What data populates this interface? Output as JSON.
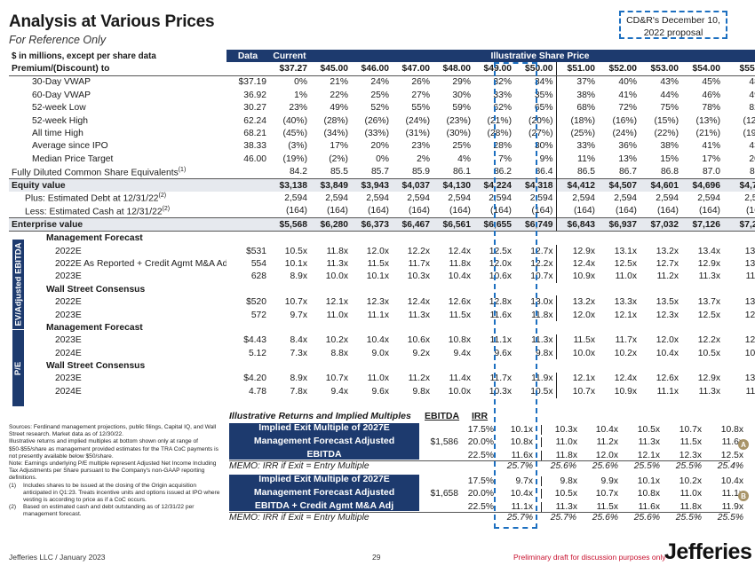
{
  "header": {
    "title": "Analysis at Various Prices",
    "subtitle": "For Reference Only",
    "proposal_line1": "CD&R's December 10,",
    "proposal_line2": "2022 proposal"
  },
  "table": {
    "units_label": "$ in millions, except per share data",
    "col_data": "Data",
    "col_current": "Current",
    "col_illustrative": "Illustrative Share Price",
    "premium_label": "Premium/(Discount) to",
    "prices": [
      "$37.27",
      "$45.00",
      "$46.00",
      "$47.00",
      "$48.00",
      "$49.00",
      "$50.00",
      "$51.00",
      "$52.00",
      "$53.00",
      "$54.00",
      "$55.00"
    ],
    "premium_rows": [
      {
        "label": "30-Day VWAP",
        "data": "$37.19",
        "vals": [
          "0%",
          "21%",
          "24%",
          "26%",
          "29%",
          "32%",
          "34%",
          "37%",
          "40%",
          "43%",
          "45%",
          "48%"
        ]
      },
      {
        "label": "60-Day VWAP",
        "data": "36.92",
        "vals": [
          "1%",
          "22%",
          "25%",
          "27%",
          "30%",
          "33%",
          "35%",
          "38%",
          "41%",
          "44%",
          "46%",
          "49%"
        ]
      },
      {
        "label": "52-week Low",
        "data": "30.27",
        "vals": [
          "23%",
          "49%",
          "52%",
          "55%",
          "59%",
          "62%",
          "65%",
          "68%",
          "72%",
          "75%",
          "78%",
          "82%"
        ]
      },
      {
        "label": "52-week High",
        "data": "62.24",
        "vals": [
          "(40%)",
          "(28%)",
          "(26%)",
          "(24%)",
          "(23%)",
          "(21%)",
          "(20%)",
          "(18%)",
          "(16%)",
          "(15%)",
          "(13%)",
          "(12%)"
        ]
      },
      {
        "label": "All time High",
        "data": "68.21",
        "vals": [
          "(45%)",
          "(34%)",
          "(33%)",
          "(31%)",
          "(30%)",
          "(28%)",
          "(27%)",
          "(25%)",
          "(24%)",
          "(22%)",
          "(21%)",
          "(19%)"
        ]
      },
      {
        "label": "Average since IPO",
        "data": "38.33",
        "vals": [
          "(3%)",
          "17%",
          "20%",
          "23%",
          "25%",
          "28%",
          "30%",
          "33%",
          "36%",
          "38%",
          "41%",
          "43%"
        ]
      },
      {
        "label": "Median Price Target",
        "data": "46.00",
        "vals": [
          "(19%)",
          "(2%)",
          "0%",
          "2%",
          "4%",
          "7%",
          "9%",
          "11%",
          "13%",
          "15%",
          "17%",
          "20%"
        ]
      }
    ],
    "fdso": {
      "label": "Fully Diluted Common Share Equivalents",
      "sup": "(1)",
      "vals": [
        "84.2",
        "85.5",
        "85.7",
        "85.9",
        "86.1",
        "86.2",
        "86.4",
        "86.5",
        "86.7",
        "86.8",
        "87.0",
        "87.1"
      ]
    },
    "equity": {
      "label": "Equity value",
      "vals": [
        "$3,138",
        "$3,849",
        "$3,943",
        "$4,037",
        "$4,130",
        "$4,224",
        "$4,318",
        "$4,412",
        "$4,507",
        "$4,601",
        "$4,696",
        "$4,791"
      ]
    },
    "debt": {
      "label": "Plus: Estimated Debt at 12/31/22",
      "sup": "(2)",
      "vals": [
        "2,594",
        "2,594",
        "2,594",
        "2,594",
        "2,594",
        "2,594",
        "2,594",
        "2,594",
        "2,594",
        "2,594",
        "2,594",
        "2,594"
      ]
    },
    "cash": {
      "label": "Less: Estimated Cash at 12/31/22",
      "sup": "(2)",
      "vals": [
        "(164)",
        "(164)",
        "(164)",
        "(164)",
        "(164)",
        "(164)",
        "(164)",
        "(164)",
        "(164)",
        "(164)",
        "(164)",
        "(164)"
      ]
    },
    "ev": {
      "label": "Enterprise value",
      "vals": [
        "$5,568",
        "$6,280",
        "$6,373",
        "$6,467",
        "$6,561",
        "$6,655",
        "$6,749",
        "$6,843",
        "$6,937",
        "$7,032",
        "$7,126",
        "$7,221"
      ]
    },
    "ev_ebitda_tag": "EV/Adjusted EBITDA",
    "ev_ebitda": [
      {
        "label": "Management Forecast",
        "group": true
      },
      {
        "label": "2022E",
        "data": "$531",
        "vals": [
          "10.5x",
          "11.8x",
          "12.0x",
          "12.2x",
          "12.4x",
          "12.5x",
          "12.7x",
          "12.9x",
          "13.1x",
          "13.2x",
          "13.4x",
          "13.6x"
        ],
        "badge": "A"
      },
      {
        "label": "2022E As Reported + Credit Agmt M&A Adj",
        "data": "554",
        "vals": [
          "10.1x",
          "11.3x",
          "11.5x",
          "11.7x",
          "11.8x",
          "12.0x",
          "12.2x",
          "12.4x",
          "12.5x",
          "12.7x",
          "12.9x",
          "13.0x"
        ],
        "badge": "B"
      },
      {
        "label": "2023E",
        "data": "628",
        "vals": [
          "8.9x",
          "10.0x",
          "10.1x",
          "10.3x",
          "10.4x",
          "10.6x",
          "10.7x",
          "10.9x",
          "11.0x",
          "11.2x",
          "11.3x",
          "11.5x"
        ]
      },
      {
        "label": "Wall Street Consensus",
        "group": true
      },
      {
        "label": "2022E",
        "data": "$520",
        "vals": [
          "10.7x",
          "12.1x",
          "12.3x",
          "12.4x",
          "12.6x",
          "12.8x",
          "13.0x",
          "13.2x",
          "13.3x",
          "13.5x",
          "13.7x",
          "13.9x"
        ]
      },
      {
        "label": "2023E",
        "data": "572",
        "vals": [
          "9.7x",
          "11.0x",
          "11.1x",
          "11.3x",
          "11.5x",
          "11.6x",
          "11.8x",
          "12.0x",
          "12.1x",
          "12.3x",
          "12.5x",
          "12.6x"
        ]
      }
    ],
    "pe_tag": "P/E",
    "pe": [
      {
        "label": "Management Forecast",
        "group": true
      },
      {
        "label": "2023E",
        "data": "$4.43",
        "vals": [
          "8.4x",
          "10.2x",
          "10.4x",
          "10.6x",
          "10.8x",
          "11.1x",
          "11.3x",
          "11.5x",
          "11.7x",
          "12.0x",
          "12.2x",
          "12.4x"
        ]
      },
      {
        "label": "2024E",
        "data": "5.12",
        "vals": [
          "7.3x",
          "8.8x",
          "9.0x",
          "9.2x",
          "9.4x",
          "9.6x",
          "9.8x",
          "10.0x",
          "10.2x",
          "10.4x",
          "10.5x",
          "10.7x"
        ]
      },
      {
        "label": "Wall Street Consensus",
        "group": true
      },
      {
        "label": "2023E",
        "data": "$4.20",
        "vals": [
          "8.9x",
          "10.7x",
          "11.0x",
          "11.2x",
          "11.4x",
          "11.7x",
          "11.9x",
          "12.1x",
          "12.4x",
          "12.6x",
          "12.9x",
          "13.1x"
        ]
      },
      {
        "label": "2024E",
        "data": "4.78",
        "vals": [
          "7.8x",
          "9.4x",
          "9.6x",
          "9.8x",
          "10.0x",
          "10.3x",
          "10.5x",
          "10.7x",
          "10.9x",
          "11.1x",
          "11.3x",
          "11.5x"
        ]
      }
    ]
  },
  "returns": {
    "heading": "Illustrative Returns and Implied Multiples",
    "ebitda_head": "EBITDA",
    "irr_head": "IRR",
    "block1": {
      "label": "Implied Exit Multiple of 2027E Management Forecast Adjusted EBITDA",
      "ebitda": "$1,586",
      "rows": [
        {
          "irr": "17.5%",
          "vals": [
            "10.1x",
            "10.3x",
            "10.4x",
            "10.5x",
            "10.7x",
            "10.8x"
          ]
        },
        {
          "irr": "20.0%",
          "vals": [
            "10.8x",
            "11.0x",
            "11.2x",
            "11.3x",
            "11.5x",
            "11.6x"
          ]
        },
        {
          "irr": "22.5%",
          "vals": [
            "11.6x",
            "11.8x",
            "12.0x",
            "12.1x",
            "12.3x",
            "12.5x"
          ]
        }
      ],
      "memo": "MEMO: IRR if Exit = Entry Multiple",
      "memo_vals": [
        "25.7%",
        "25.6%",
        "25.6%",
        "25.5%",
        "25.5%",
        "25.4%"
      ],
      "badge": "A"
    },
    "block2": {
      "label": "Implied Exit Multiple of 2027E Management Forecast Adjusted EBITDA + Credit Agmt M&A Adj",
      "ebitda": "$1,658",
      "rows": [
        {
          "irr": "17.5%",
          "vals": [
            "9.7x",
            "9.8x",
            "9.9x",
            "10.1x",
            "10.2x",
            "10.4x"
          ]
        },
        {
          "irr": "20.0%",
          "vals": [
            "10.4x",
            "10.5x",
            "10.7x",
            "10.8x",
            "11.0x",
            "11.1x"
          ]
        },
        {
          "irr": "22.5%",
          "vals": [
            "11.1x",
            "11.3x",
            "11.5x",
            "11.6x",
            "11.8x",
            "11.9x"
          ]
        }
      ],
      "memo": "MEMO: IRR if Exit = Entry Multiple",
      "memo_vals": [
        "25.7%",
        "25.7%",
        "25.6%",
        "25.6%",
        "25.5%",
        "25.5%"
      ],
      "badge": "B"
    }
  },
  "notes": {
    "sources": "Sources: Ferdinand management projections, public filings, Capital IQ, and Wall Street research. Market data as of 12/30/22.",
    "illustrative": "Illustrative returns and implied multiples at bottom shown only at range of $50-$55/share as management provided estimates for the TRA CoC payments is not presently available below $50/share.",
    "note_pe": "Note: Earnings underlying P/E multiple represent Adjusted Net Income Including Tax Adjustments per Share pursuant to the Company's non-GAAP reporting definitions.",
    "fn1_num": "(1)",
    "fn1": "Includes shares to be issued at the closing of the Origin acquisition anticipated in Q1:23. Treats incentive units and options issued at IPO where vesting is according to price as if a CoC occurs.",
    "fn2_num": "(2)",
    "fn2": "Based on estimated cash and debt outstanding as of 12/31/22 per management forecast."
  },
  "footer": {
    "left": "Jefferies LLC / January 2023",
    "page": "29",
    "draft": "Preliminary draft for discussion purposes only",
    "logo": "Jefferies"
  },
  "colors": {
    "navy": "#1d3a6e",
    "blue_dash": "#1c6fc0",
    "badge": "#a89468",
    "draft_red": "#c8102e"
  }
}
